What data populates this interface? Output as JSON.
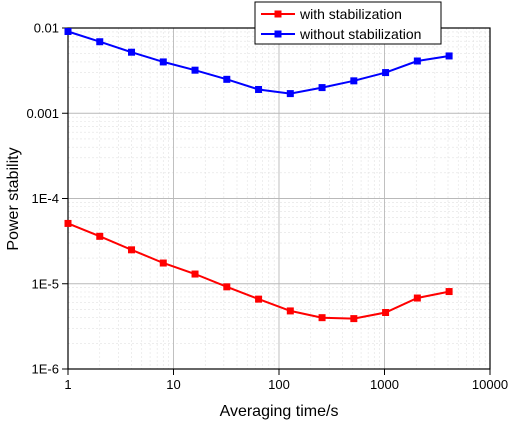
{
  "chart_data": {
    "type": "line",
    "title": "",
    "xlabel": "Averaging time/s",
    "ylabel": "Power stability",
    "x_scale": "log",
    "y_scale": "log",
    "xlim": [
      1,
      10000
    ],
    "ylim": [
      1e-06,
      0.01
    ],
    "x_ticks": [
      1,
      10,
      100,
      1000,
      10000
    ],
    "x_tick_labels": [
      "1",
      "10",
      "100",
      "1000",
      "10000"
    ],
    "y_ticks": [
      1e-06,
      1e-05,
      0.0001,
      0.001,
      0.01
    ],
    "y_tick_labels": [
      "1E-6",
      "1E-5",
      "1E-4",
      "0.001",
      "0.01"
    ],
    "grid": true,
    "legend_position": "top-right",
    "series": [
      {
        "name": "with stabilization",
        "color": "#ff0000",
        "marker": "square",
        "x": [
          1,
          2,
          4,
          8,
          16,
          32,
          64,
          128,
          256,
          512,
          1024,
          2048,
          4096
        ],
        "y": [
          5.1e-05,
          3.6e-05,
          2.5e-05,
          1.75e-05,
          1.3e-05,
          9.2e-06,
          6.6e-06,
          4.8e-06,
          4e-06,
          3.9e-06,
          4.6e-06,
          6.8e-06,
          8.1e-06
        ]
      },
      {
        "name": "without stabilization",
        "color": "#0000ff",
        "marker": "square",
        "x": [
          1,
          2,
          4,
          8,
          16,
          32,
          64,
          128,
          256,
          512,
          1024,
          2048,
          4096
        ],
        "y": [
          0.0091,
          0.0069,
          0.0052,
          0.004,
          0.0032,
          0.0025,
          0.0019,
          0.0017,
          0.002,
          0.0024,
          0.003,
          0.0041,
          0.0047
        ]
      }
    ]
  }
}
